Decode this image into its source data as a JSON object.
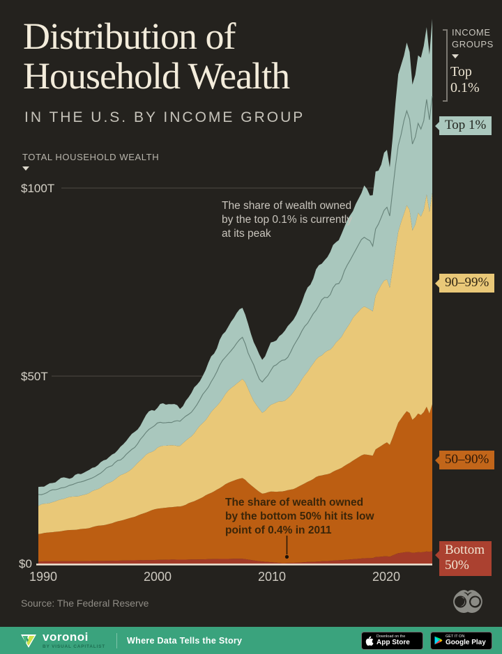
{
  "header": {
    "title_line1": "Distribution of",
    "title_line2": "Household Wealth",
    "subtitle": "IN THE U.S. BY INCOME GROUP"
  },
  "axis": {
    "y_label": "TOTAL HOUSEHOLD WEALTH",
    "y_ticks": [
      "$100T",
      "$50T",
      "$0"
    ],
    "x_ticks": [
      "1990",
      "2000",
      "2010",
      "2020"
    ]
  },
  "legend": {
    "heading_line1": "INCOME",
    "heading_line2": "GROUPS",
    "top01": "Top 0.1%",
    "top1": "Top 1%",
    "p90_99": "90–99%",
    "p50_90": "50–90%",
    "bottom50_line1": "Bottom",
    "bottom50_line2": "50%"
  },
  "annotations": {
    "top01_peak": "The share of wealth owned by the top 0.1% is currently at its peak",
    "bottom50_low": "The share of wealth owned by the bottom 50% hit its low point of 0.4% in 2011"
  },
  "source": "Source: The Federal Reserve",
  "footer": {
    "brand": "voronoi",
    "brand_sub": "BY VISUAL CAPITALIST",
    "tagline": "Where Data Tells the Story",
    "appstore_top": "Download on the",
    "appstore_bottom": "App Store",
    "gplay_top": "GET IT ON",
    "gplay_bottom": "Google Play"
  },
  "colors": {
    "background": "#24221e",
    "cream": "#f3ecdb",
    "teal": "#a9c7bd",
    "teal_line": "#5e7a71",
    "yellow": "#e9c878",
    "orange": "#bc5e12",
    "red": "#a33b28",
    "grid": "#46433d",
    "axis_line": "#f1e8d6",
    "footer_green": "#3aa37d"
  },
  "chart_data": {
    "type": "area",
    "title": "Distribution of Household Wealth in the U.S. by Income Group",
    "ylabel": "Total household wealth (trillions USD)",
    "unit": "$T",
    "xlim": [
      1989.6,
      2024
    ],
    "ylim": [
      0,
      150
    ],
    "y_gridlines_T": [
      50,
      100
    ],
    "x_tick_years": [
      1990,
      2000,
      2010,
      2020
    ],
    "legend_position": "right",
    "x": [
      1989.6,
      1990,
      1991,
      1992,
      1993,
      1994,
      1995,
      1996,
      1997,
      1998,
      1999,
      2000,
      2001,
      2002,
      2003,
      2004,
      2005,
      2006,
      2007,
      2007.5,
      2008,
      2008.8,
      2009.2,
      2010,
      2011,
      2012,
      2013,
      2014,
      2015,
      2016,
      2017,
      2018,
      2018.9,
      2019,
      2020,
      2020.3,
      2021,
      2021.9,
      2022.3,
      2022.8,
      2023.1,
      2023.5,
      2023.7,
      2024
    ],
    "series": [
      {
        "name": "Bottom 50%",
        "color_key": "red",
        "values": [
          0.72,
          0.74,
          0.76,
          0.78,
          0.8,
          0.82,
          0.87,
          0.9,
          0.95,
          1.0,
          1.07,
          1.15,
          1.2,
          1.2,
          1.25,
          1.3,
          1.35,
          1.4,
          1.4,
          1.4,
          1.15,
          0.85,
          0.7,
          0.5,
          0.25,
          0.4,
          0.55,
          0.7,
          0.85,
          1.05,
          1.3,
          1.55,
          1.6,
          1.85,
          2.1,
          2.0,
          2.9,
          3.3,
          3.0,
          3.2,
          3.15,
          3.4,
          3.25,
          3.5
        ]
      },
      {
        "name": "50–90%",
        "color_key": "orange",
        "values": [
          7.3,
          7.45,
          7.85,
          8.15,
          8.45,
          8.75,
          9.4,
          9.95,
          10.8,
          11.6,
          12.7,
          13.6,
          14.0,
          14.1,
          15.2,
          16.6,
          18.2,
          19.9,
          21.1,
          21.5,
          20.3,
          18.6,
          17.9,
          18.8,
          19.0,
          19.8,
          21.2,
          22.6,
          23.3,
          24.5,
          26.1,
          27.6,
          27.2,
          28.6,
          30.3,
          29.5,
          34.7,
          38.0,
          35.2,
          37.0,
          36.2,
          38.6,
          36.4,
          38.9
        ]
      },
      {
        "name": "90–99%",
        "color_key": "yellow",
        "values": [
          7.55,
          7.7,
          8.2,
          8.55,
          8.95,
          9.3,
          10.2,
          11.0,
          12.2,
          13.4,
          15.0,
          16.2,
          16.4,
          16.0,
          17.6,
          19.5,
          21.8,
          24.1,
          25.8,
          26.4,
          24.3,
          21.9,
          21.2,
          23.3,
          24.2,
          26.1,
          29.0,
          31.5,
          32.7,
          34.6,
          37.6,
          39.8,
          38.6,
          41.0,
          43.8,
          42.2,
          50.6,
          55.5,
          50.2,
          53.2,
          51.8,
          55.8,
          52.3,
          56.2
        ]
      },
      {
        "name": "Top 1% (excluding top 0.1%)",
        "color_key": "teal",
        "values": [
          2.75,
          2.85,
          3.05,
          3.2,
          3.35,
          3.5,
          3.85,
          4.2,
          4.7,
          5.3,
          6.0,
          6.5,
          6.5,
          6.2,
          6.9,
          7.8,
          8.9,
          10.0,
          10.9,
          11.2,
          10.2,
          9.1,
          8.9,
          9.9,
          10.5,
          11.4,
          12.9,
          14.1,
          14.7,
          15.6,
          17.0,
          17.9,
          17.2,
          18.4,
          19.7,
          18.9,
          23.0,
          25.5,
          23.0,
          24.4,
          23.7,
          25.6,
          24.0,
          25.8
        ]
      },
      {
        "name": "Top 0.1%",
        "color_key": "teal",
        "values": [
          1.68,
          1.76,
          1.94,
          2.12,
          2.25,
          2.43,
          2.68,
          2.95,
          3.35,
          3.7,
          4.23,
          4.55,
          4.4,
          4.0,
          4.55,
          5.3,
          6.25,
          7.1,
          7.8,
          8.0,
          7.05,
          6.05,
          5.8,
          7.0,
          7.55,
          8.3,
          9.35,
          10.1,
          10.45,
          11.25,
          12.5,
          13.1,
          12.4,
          13.15,
          14.1,
          13.4,
          16.8,
          19.0,
          16.6,
          17.9,
          17.2,
          19.1,
          17.6,
          19.3
        ]
      }
    ],
    "annotation_marker": {
      "year": 2011,
      "label_value": "0.4%"
    }
  }
}
